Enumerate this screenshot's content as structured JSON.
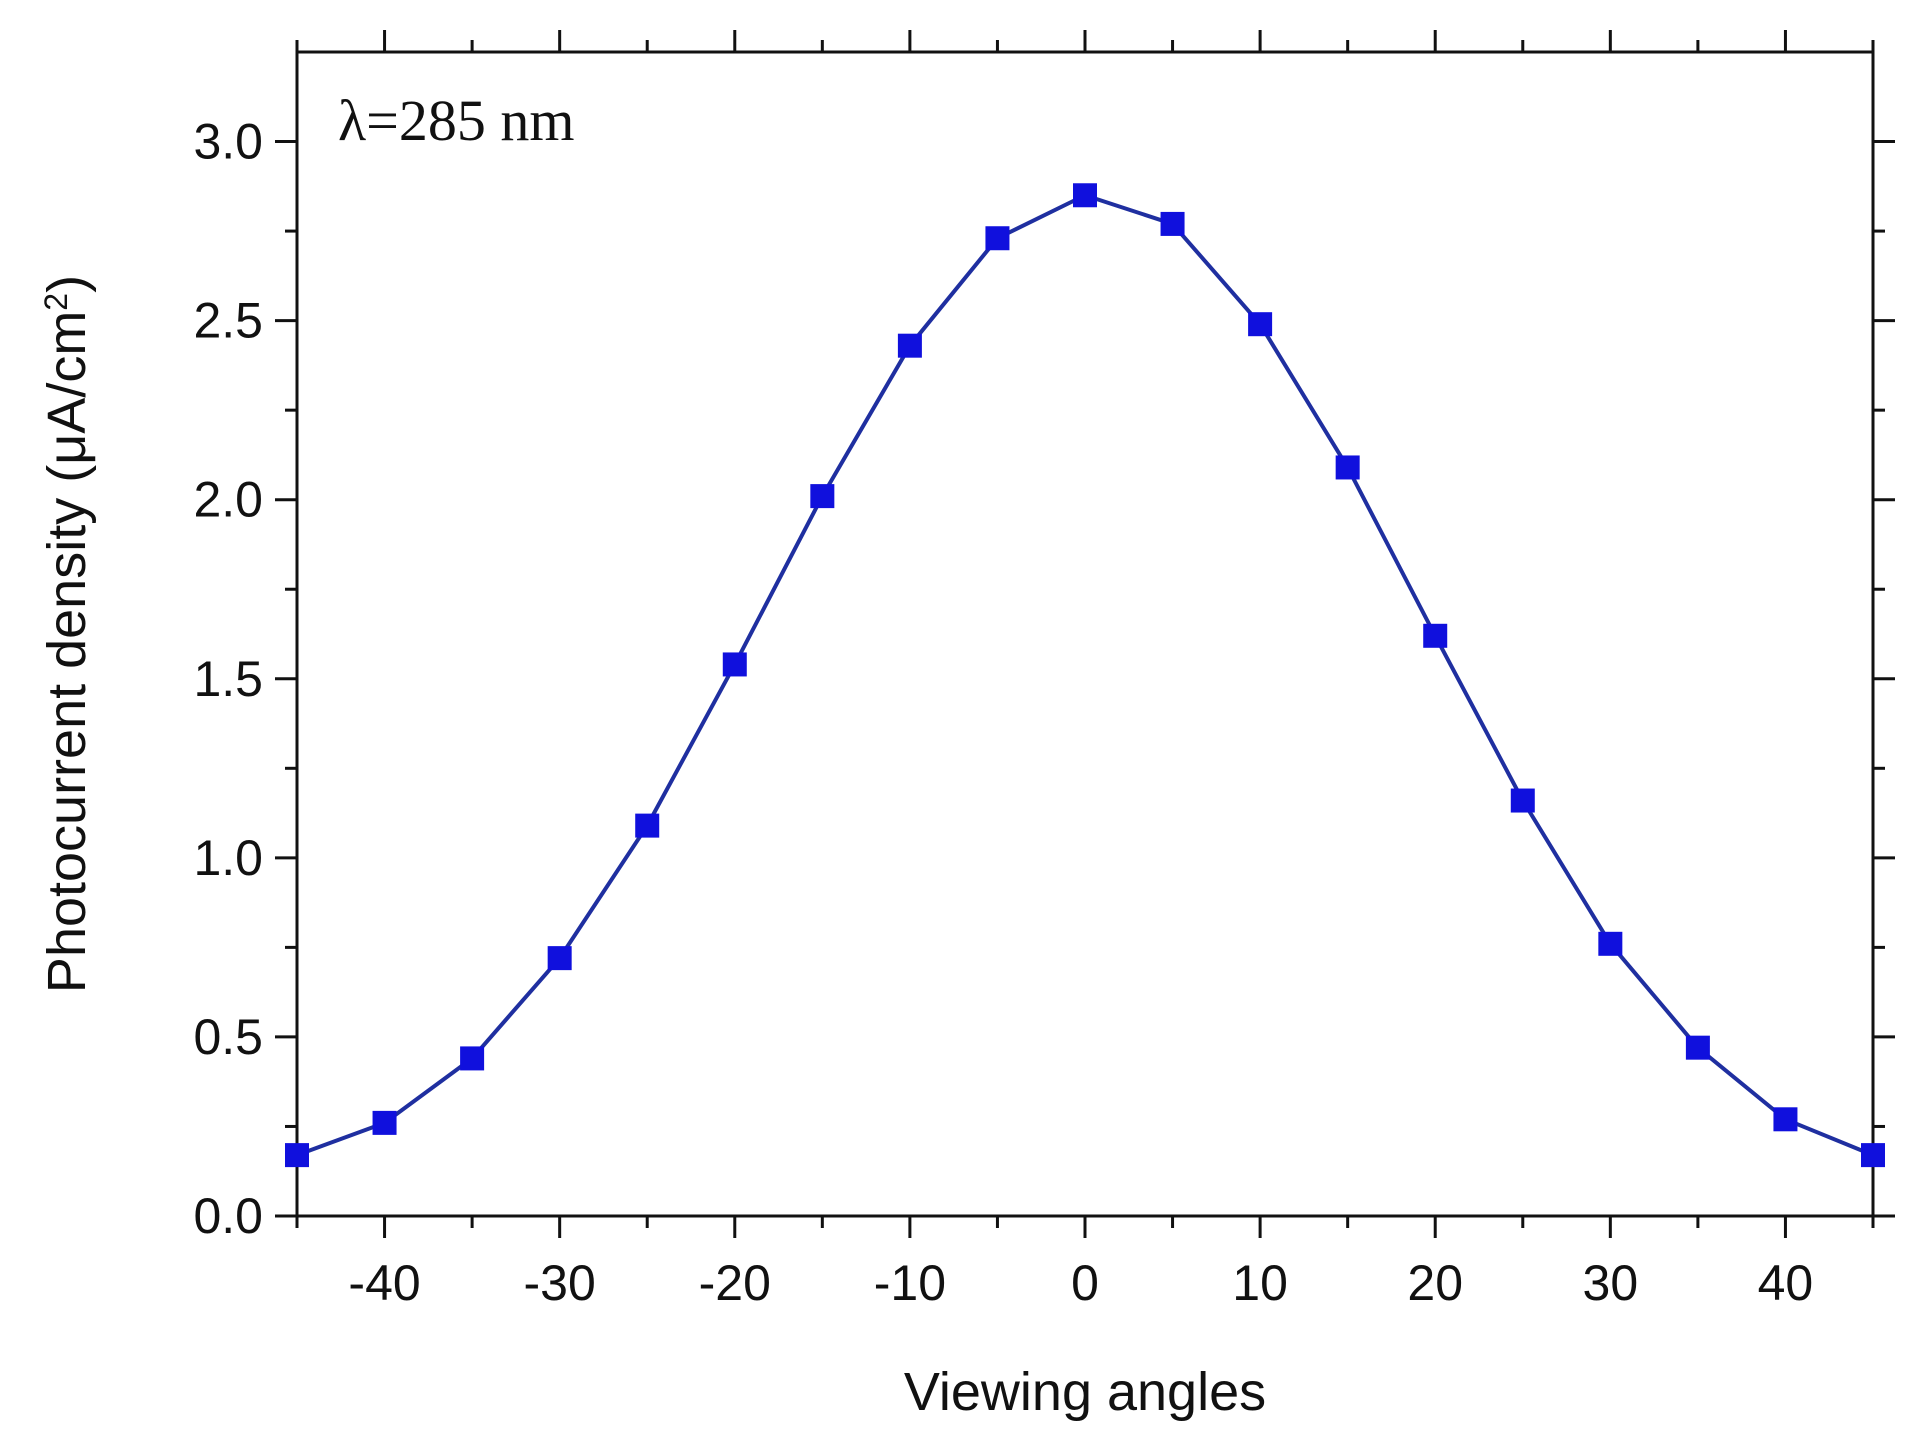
{
  "chart_data": {
    "type": "line",
    "xlabel": "Viewing angles",
    "ylabel_main": "Photocurrent density (μA/cm",
    "ylabel_sup": "2",
    "ylabel_close": ")",
    "annotation": "λ=285 nm",
    "xlim": [
      -45,
      45
    ],
    "ylim": [
      0,
      3.25
    ],
    "xticks": [
      -40,
      -30,
      -20,
      -10,
      0,
      10,
      20,
      30,
      40
    ],
    "yticks": [
      0.0,
      0.5,
      1.0,
      1.5,
      2.0,
      2.5,
      3.0
    ],
    "xtick_labels": [
      "-40",
      "-30",
      "-20",
      "-10",
      "0",
      "10",
      "20",
      "30",
      "40"
    ],
    "ytick_labels": [
      "0.0",
      "0.5",
      "1.0",
      "1.5",
      "2.0",
      "2.5",
      "3.0"
    ],
    "line_color": "#1f2fa0",
    "marker_color": "#1010dd",
    "marker": "square",
    "series": [
      {
        "x": [
          -45,
          -40,
          -35,
          -30,
          -25,
          -20,
          -15,
          -10,
          -5,
          0,
          5,
          10,
          15,
          20,
          25,
          30,
          35,
          40,
          45
        ],
        "y": [
          0.17,
          0.26,
          0.44,
          0.72,
          1.09,
          1.54,
          2.01,
          2.43,
          2.73,
          2.85,
          2.77,
          2.49,
          2.09,
          1.62,
          1.16,
          0.76,
          0.47,
          0.27,
          0.17
        ]
      }
    ]
  }
}
